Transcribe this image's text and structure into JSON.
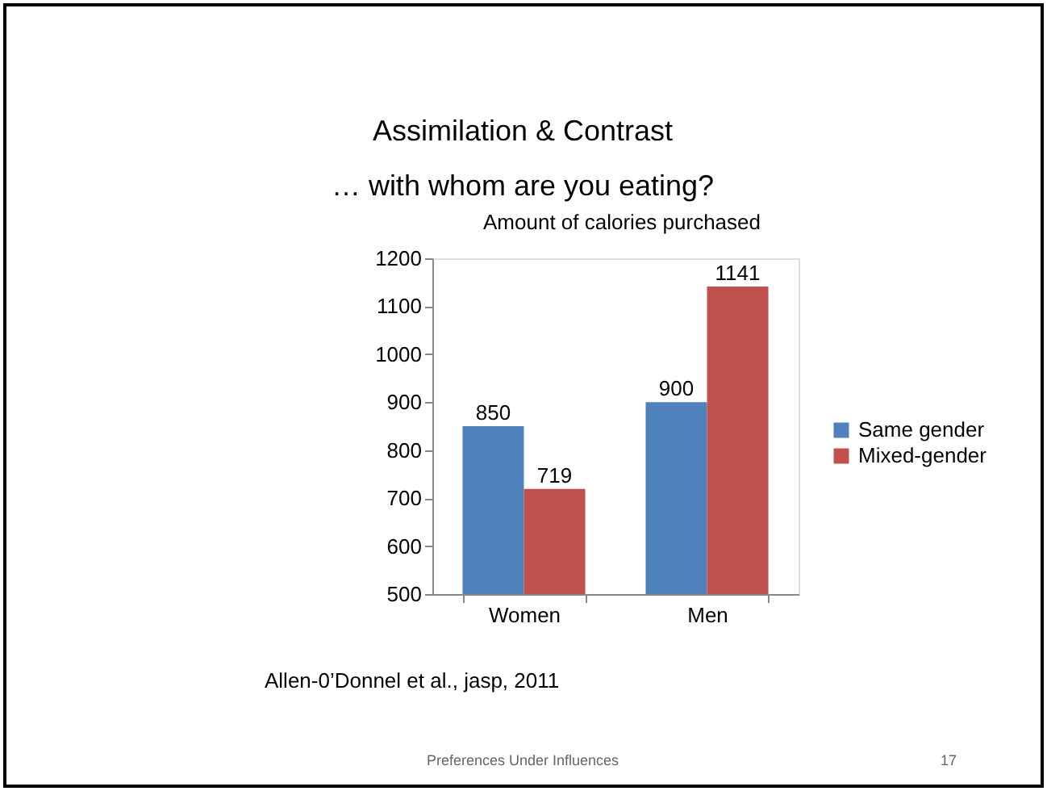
{
  "chart_data": {
    "type": "bar",
    "title": "Amount of calories purchased",
    "categories": [
      "Women",
      "Men"
    ],
    "series": [
      {
        "name": "Same gender",
        "color": "#4f81bd",
        "values": [
          850,
          900
        ]
      },
      {
        "name": "Mixed-gender",
        "color": "#c0504d",
        "values": [
          719,
          1141
        ]
      }
    ],
    "ylim": [
      500,
      1200
    ],
    "yticks": [
      500,
      600,
      700,
      800,
      900,
      1000,
      1100,
      1200
    ],
    "grid": false,
    "legend": "right",
    "data_labels": true,
    "annotations": [
      "Assimilation & Contrast",
      "… with whom are you eating?",
      "Allen-0’Donnel et al., jasp, 2011",
      "Preferences Under Influences",
      "17"
    ]
  }
}
